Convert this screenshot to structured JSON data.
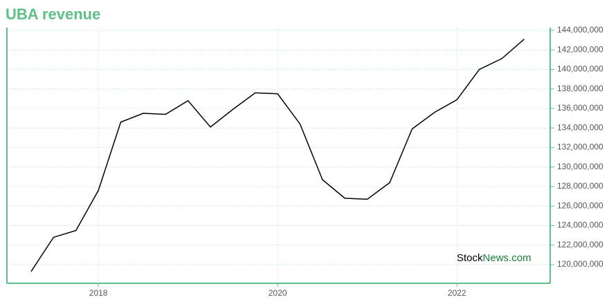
{
  "chart_data": {
    "type": "line",
    "title": "UBA revenue",
    "x": [
      2017.25,
      2017.5,
      2017.75,
      2018.0,
      2018.25,
      2018.5,
      2018.75,
      2019.0,
      2019.25,
      2019.5,
      2019.75,
      2020.0,
      2020.25,
      2020.5,
      2020.75,
      2021.0,
      2021.25,
      2021.5,
      2021.75,
      2022.0,
      2022.25,
      2022.5,
      2022.75
    ],
    "series": [
      {
        "name": "UBA revenue",
        "color": "#000000",
        "values": [
          119300000,
          122800000,
          123500000,
          127600000,
          134600000,
          135500000,
          135400000,
          136800000,
          134100000,
          135900000,
          137600000,
          137500000,
          134400000,
          128700000,
          126800000,
          126700000,
          128400000,
          133900000,
          135600000,
          136900000,
          140000000,
          141100000,
          143100000
        ]
      }
    ],
    "xlim": [
      2016.98,
      2023.04
    ],
    "xticks": [
      2018,
      2020,
      2022
    ],
    "ylim": [
      118090000,
      144280000
    ],
    "yticks": [
      {
        "value": 120000000,
        "label": "120,000,000"
      },
      {
        "value": 122000000,
        "label": "122,000,000"
      },
      {
        "value": 124000000,
        "label": "124,000,000"
      },
      {
        "value": 126000000,
        "label": "126,000,000"
      },
      {
        "value": 128000000,
        "label": "128,000,000"
      },
      {
        "value": 130000000,
        "label": "130,000,000"
      },
      {
        "value": 132000000,
        "label": "132,000,000"
      },
      {
        "value": 134000000,
        "label": "134,000,000"
      },
      {
        "value": 136000000,
        "label": "136,000,000"
      },
      {
        "value": 138000000,
        "label": "138,000,000"
      },
      {
        "value": 140000000,
        "label": "140,000,000"
      },
      {
        "value": 142000000,
        "label": "142,000,000"
      },
      {
        "value": 144000000,
        "label": "144,000,000"
      }
    ],
    "grid": true,
    "axis_color": "#5cbf85",
    "grid_color": "#b8e0d8",
    "watermark": {
      "part1": "Stock",
      "part2": "News.com"
    }
  }
}
